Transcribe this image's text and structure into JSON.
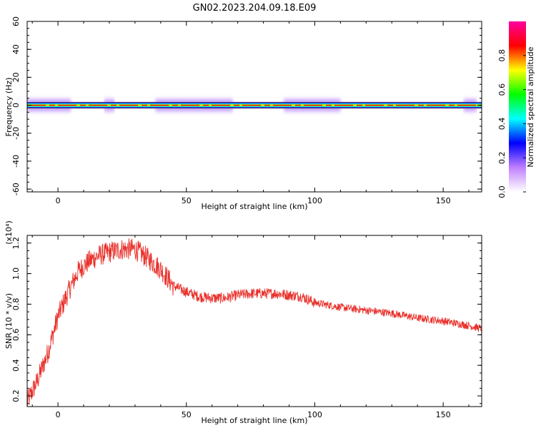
{
  "title": "GN02.2023.204.09.18.E09",
  "chart_data": [
    {
      "type": "heatmap",
      "xlabel": "Height of straight line (km)",
      "ylabel": "Frequency (Hz)",
      "xlim": [
        -12,
        165
      ],
      "ylim": [
        -62,
        60
      ],
      "xticks": [
        0,
        50,
        100,
        150
      ],
      "yticks": [
        60,
        40,
        20,
        0,
        -20,
        -40,
        -60
      ],
      "colorbar": {
        "label": "Normalized spectral amplitude",
        "range": [
          0,
          1
        ],
        "ticks": [
          "0.0",
          "0.2",
          "0.4",
          "0.6",
          "0.8"
        ],
        "colors": [
          "#ffffff",
          "#c080ff",
          "#0000ff",
          "#00ffff",
          "#00ff00",
          "#ffff00",
          "#ff0000",
          "#ff00a0"
        ]
      },
      "band": {
        "center_hz": 0,
        "peak_color": "#ff0000",
        "edge_color": "#c080ff",
        "widened_segments_km": [
          [
            -12,
            5
          ],
          [
            18,
            22
          ],
          [
            38,
            68
          ],
          [
            88,
            110
          ],
          [
            158,
            163
          ]
        ]
      }
    },
    {
      "type": "line",
      "xlabel": "Height of straight line (km)",
      "ylabel": "SNR (10 * v/v)",
      "scale_label": "(x10⁴)",
      "xlim": [
        -12,
        165
      ],
      "ylim": [
        0.13,
        1.25
      ],
      "xticks": [
        0,
        50,
        100,
        150
      ],
      "yticks": [
        "0.2",
        "0.4",
        "0.6",
        "0.8",
        "1.0",
        "1.2"
      ],
      "color": "#e8302a",
      "x": [
        -12,
        -8,
        -4,
        0,
        4,
        8,
        12,
        16,
        20,
        25,
        30,
        35,
        40,
        45,
        50,
        55,
        60,
        65,
        70,
        75,
        80,
        85,
        90,
        95,
        100,
        110,
        120,
        130,
        140,
        150,
        160,
        165
      ],
      "y": [
        0.16,
        0.3,
        0.48,
        0.72,
        0.88,
        1.02,
        1.08,
        1.12,
        1.14,
        1.16,
        1.16,
        1.1,
        1.03,
        0.92,
        0.88,
        0.85,
        0.84,
        0.84,
        0.86,
        0.87,
        0.87,
        0.87,
        0.86,
        0.85,
        0.81,
        0.78,
        0.76,
        0.74,
        0.71,
        0.69,
        0.66,
        0.64
      ]
    }
  ]
}
